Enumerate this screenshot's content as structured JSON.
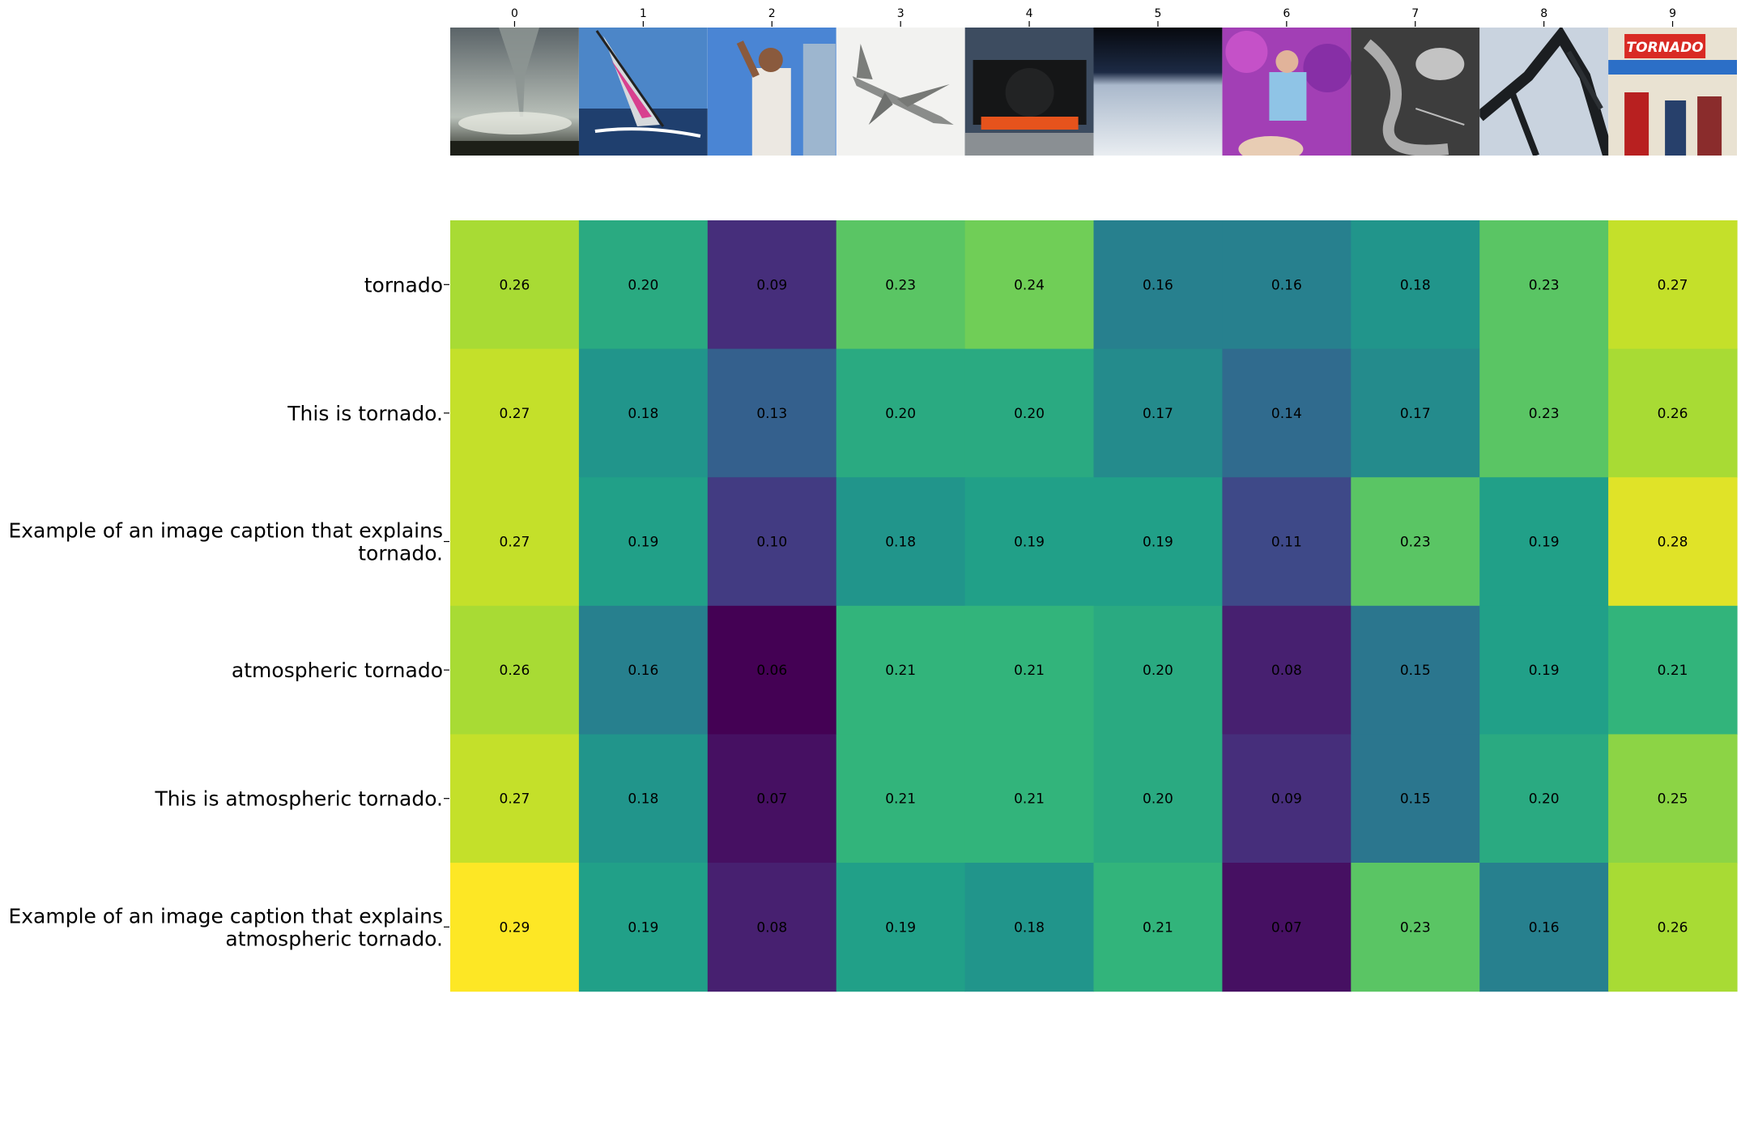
{
  "chart_data": {
    "type": "heatmap",
    "title": "",
    "xlabel": "",
    "ylabel": "",
    "colormap": "viridis",
    "value_range": [
      0.06,
      0.29
    ],
    "x_tick_labels": [
      "0",
      "1",
      "2",
      "3",
      "4",
      "5",
      "6",
      "7",
      "8",
      "9"
    ],
    "column_thumbnails": [
      "tornado-photo",
      "sailboat-photo",
      "singer-photo",
      "fighter-jet-photo",
      "steam-locomotive-photo",
      "earth-horizon-photo",
      "performer-photo",
      "weather-satellite-photo",
      "roller-coaster-photo",
      "tornado-ride-sign-photo"
    ],
    "thumbnail_sign_text": "TORNADO",
    "rows": [
      "tornado",
      "This is tornado.",
      "Example of an image caption that explains tornado.",
      "atmospheric tornado",
      "This is atmospheric tornado.",
      "Example of an image caption that explains atmospheric tornado."
    ],
    "row_label_lines": [
      [
        "tornado"
      ],
      [
        "This is tornado."
      ],
      [
        "Example of an image caption that explains",
        "tornado."
      ],
      [
        "atmospheric tornado"
      ],
      [
        "This is atmospheric tornado."
      ],
      [
        "Example of an image caption that explains",
        "atmospheric tornado."
      ]
    ],
    "values": [
      [
        0.26,
        0.2,
        0.09,
        0.23,
        0.24,
        0.16,
        0.16,
        0.18,
        0.23,
        0.27
      ],
      [
        0.27,
        0.18,
        0.13,
        0.2,
        0.2,
        0.17,
        0.14,
        0.17,
        0.23,
        0.26
      ],
      [
        0.27,
        0.19,
        0.1,
        0.18,
        0.19,
        0.19,
        0.11,
        0.23,
        0.19,
        0.28
      ],
      [
        0.26,
        0.16,
        0.06,
        0.21,
        0.21,
        0.2,
        0.08,
        0.15,
        0.19,
        0.21
      ],
      [
        0.27,
        0.18,
        0.07,
        0.21,
        0.21,
        0.2,
        0.09,
        0.15,
        0.2,
        0.25
      ],
      [
        0.29,
        0.19,
        0.08,
        0.19,
        0.18,
        0.21,
        0.07,
        0.23,
        0.16,
        0.26
      ]
    ],
    "cell_label_format": "2dp",
    "grid": false,
    "legend": "none"
  }
}
